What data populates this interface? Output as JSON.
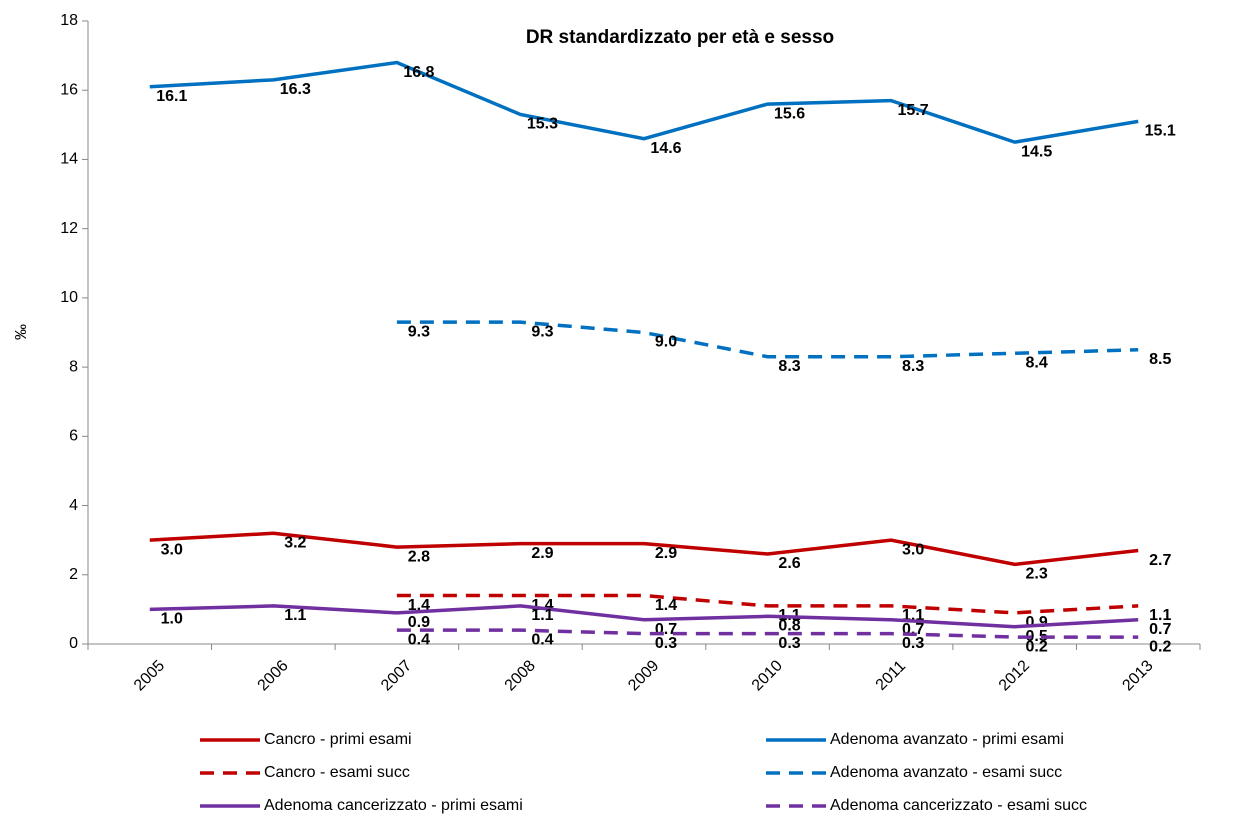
{
  "chart_data": {
    "type": "line",
    "title": "DR standardizzato per età e sesso",
    "y_label": "‰",
    "categories": [
      "2005",
      "2006",
      "2007",
      "2008",
      "2009",
      "2010",
      "2011",
      "2012",
      "2013"
    ],
    "ylim": [
      0,
      18
    ],
    "yticks": [
      0,
      2,
      4,
      6,
      8,
      10,
      12,
      14,
      16,
      18
    ],
    "grid": false,
    "legend": "bottom",
    "series": [
      {
        "name": "Cancro - primi esami",
        "color": "#c00000",
        "style": "solid",
        "values": [
          3.0,
          3.2,
          2.8,
          2.9,
          2.9,
          2.6,
          3.0,
          2.3,
          2.7
        ],
        "value_labels": [
          "3.0",
          "3.2",
          "2.8",
          "2.9",
          "2.9",
          "2.6",
          "3.0",
          "2.3",
          "2.7"
        ]
      },
      {
        "name": "Adenoma avanzato - primi esami",
        "color": "#0070c0",
        "style": "solid",
        "values": [
          16.1,
          16.3,
          16.8,
          15.3,
          14.6,
          15.6,
          15.7,
          14.5,
          15.1
        ],
        "value_labels": [
          "16.1",
          "16.3",
          "16.8",
          "15.3",
          "14.6",
          "15.6",
          "15.7",
          "14.5",
          "15.1"
        ]
      },
      {
        "name": "Cancro - esami succ",
        "color": "#c00000",
        "style": "dashed",
        "values": [
          null,
          null,
          1.4,
          1.4,
          1.4,
          1.1,
          1.1,
          0.9,
          1.1
        ],
        "value_labels": [
          null,
          null,
          "1.4",
          "1.4",
          "1.4",
          "1.1",
          "1.1",
          "0.9",
          "1.1"
        ]
      },
      {
        "name": "Adenoma avanzato - esami succ",
        "color": "#0070c0",
        "style": "dashed",
        "values": [
          null,
          null,
          9.3,
          9.3,
          9.0,
          8.3,
          8.3,
          8.4,
          8.5
        ],
        "value_labels": [
          null,
          null,
          "9.3",
          "9.3",
          "9.0",
          "8.3",
          "8.3",
          "8.4",
          "8.5"
        ]
      },
      {
        "name": "Adenoma cancerizzato - primi esami",
        "color": "#7030a0",
        "style": "solid",
        "values": [
          1.0,
          1.1,
          0.9,
          1.1,
          0.7,
          0.8,
          0.7,
          0.5,
          0.7
        ],
        "value_labels": [
          "1.0",
          "1.1",
          "0.9",
          "1.1",
          "0.7",
          "0.8",
          "0.7",
          "0.5",
          "0.7"
        ]
      },
      {
        "name": "Adenoma cancerizzato - esami succ",
        "color": "#7030a0",
        "style": "dashed",
        "values": [
          null,
          null,
          0.4,
          0.4,
          0.3,
          0.3,
          0.3,
          0.2,
          0.2
        ],
        "value_labels": [
          null,
          null,
          "0.4",
          "0.4",
          "0.3",
          "0.3",
          "0.3",
          "0.2",
          "0.2"
        ]
      }
    ]
  }
}
